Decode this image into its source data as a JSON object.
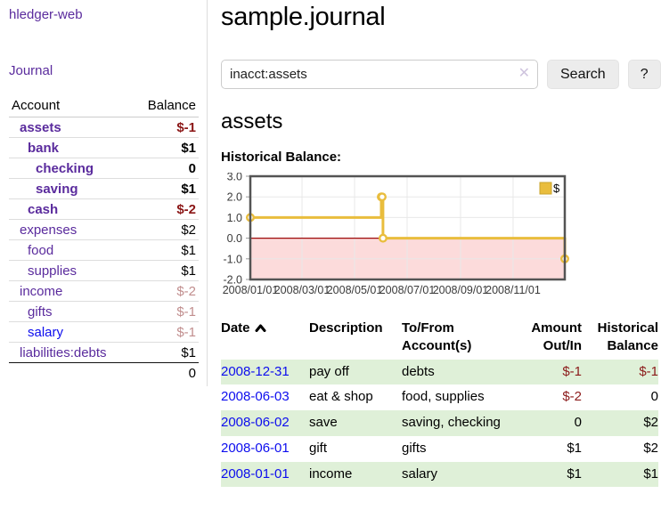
{
  "app": {
    "title": "hledger-web"
  },
  "sidebar": {
    "journal_link": "Journal",
    "accounts_table": {
      "headers": [
        "Account",
        "Balance"
      ],
      "rows": [
        {
          "name": "assets",
          "balance": "$-1",
          "level": 1,
          "active": true,
          "balance_style": "neg-strong"
        },
        {
          "name": "bank",
          "balance": "$1",
          "level": 2,
          "active": true,
          "balance_style": ""
        },
        {
          "name": "checking",
          "balance": "0",
          "level": 3,
          "active": true,
          "balance_style": ""
        },
        {
          "name": "saving",
          "balance": "$1",
          "level": 3,
          "active": true,
          "balance_style": ""
        },
        {
          "name": "cash",
          "balance": "$-2",
          "level": 2,
          "active": true,
          "balance_style": "neg-strong"
        },
        {
          "name": "expenses",
          "balance": "$2",
          "level": 1,
          "active": false,
          "balance_style": ""
        },
        {
          "name": "food",
          "balance": "$1",
          "level": 2,
          "active": false,
          "balance_style": ""
        },
        {
          "name": "supplies",
          "balance": "$1",
          "level": 2,
          "active": false,
          "balance_style": ""
        },
        {
          "name": "income",
          "balance": "$-2",
          "level": 1,
          "active": false,
          "balance_style": "neg-muted"
        },
        {
          "name": "gifts",
          "balance": "$-1",
          "level": 2,
          "active": false,
          "balance_style": "neg-muted"
        },
        {
          "name": "salary",
          "balance": "$-1",
          "level": 2,
          "active": false,
          "balance_style": "neg-muted",
          "unvisited": true
        },
        {
          "name": "liabilities:debts",
          "balance": "$1",
          "level": 1,
          "active": false,
          "balance_style": ""
        }
      ],
      "total": "0"
    }
  },
  "header": {
    "title": "sample.journal"
  },
  "search": {
    "value": "inacct:assets",
    "clear_icon": "✕",
    "button_label": "Search",
    "help_label": "?"
  },
  "account_page": {
    "title": "assets",
    "chart_label": "Historical Balance:"
  },
  "chart_data": {
    "type": "line",
    "title": "Historical Balance:",
    "step": true,
    "series": [
      {
        "name": "$",
        "color": "#e9bd3d",
        "points": [
          [
            "2008-01-01",
            1
          ],
          [
            "2008-06-01",
            2
          ],
          [
            "2008-06-02",
            2
          ],
          [
            "2008-06-03",
            0
          ],
          [
            "2008-12-31",
            -1
          ]
        ]
      }
    ],
    "x_range": [
      "2008-01-01",
      "2008-12-31"
    ],
    "x_ticks": [
      "2008/01/01",
      "2008/03/01",
      "2008/05/01",
      "2008/07/01",
      "2008/09/01",
      "2008/11/01"
    ],
    "y_ticks": [
      3.0,
      2.0,
      1.0,
      0.0,
      -1.0,
      -2.0
    ],
    "ylim": [
      -2,
      3
    ],
    "grid": true,
    "legend_position": "top-right",
    "legend_label": "$",
    "negative_region_color": "#fcdbdb",
    "zero_line_color": "#9d0a0a",
    "border_color": "#545454",
    "grid_color": "#e8e8e8"
  },
  "register_table": {
    "headers": [
      "Date",
      "Description",
      "To/From Account(s)",
      "Amount Out/In",
      "Historical Balance"
    ],
    "sort_column": "Date",
    "sort_direction": "ascending",
    "rows": [
      {
        "date": "2008-12-31",
        "description": "pay off",
        "accounts": "debts",
        "amount": "$-1",
        "balance": "$-1",
        "amount_negative": true,
        "balance_negative": true
      },
      {
        "date": "2008-06-03",
        "description": "eat & shop",
        "accounts": "food, supplies",
        "amount": "$-2",
        "balance": "0",
        "amount_negative": true,
        "balance_negative": false
      },
      {
        "date": "2008-06-02",
        "description": "save",
        "accounts": "saving, checking",
        "amount": "0",
        "balance": "$2",
        "amount_negative": false,
        "balance_negative": false
      },
      {
        "date": "2008-06-01",
        "description": "gift",
        "accounts": "gifts",
        "amount": "$1",
        "balance": "$2",
        "amount_negative": false,
        "balance_negative": false
      },
      {
        "date": "2008-01-01",
        "description": "income",
        "accounts": "salary",
        "amount": "$1",
        "balance": "$1",
        "amount_negative": false,
        "balance_negative": false
      }
    ]
  },
  "colors": {
    "link_purple": "#5a2b9d",
    "link_blue": "#0d0dee",
    "negative_strong": "#8b1616",
    "negative_muted": "#c18e8e",
    "row_green": "#dff0d8",
    "chart_line": "#e9bd3d"
  }
}
